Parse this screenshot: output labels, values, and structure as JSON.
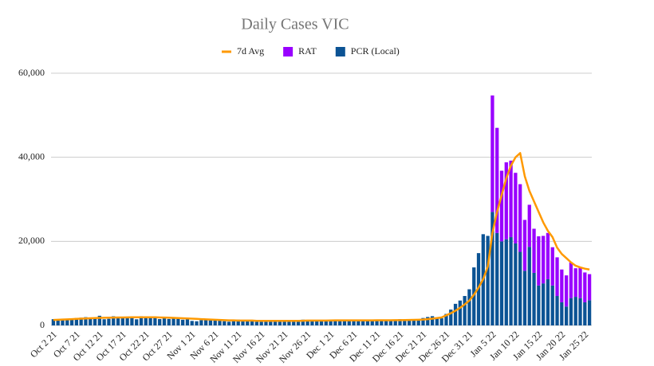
{
  "chart_data": {
    "type": "bar",
    "stacked": true,
    "title": "Daily Cases VIC",
    "categories": [
      "Oct 2 21",
      null,
      null,
      null,
      null,
      "Oct 7 21",
      null,
      null,
      null,
      null,
      "Oct 12 21",
      null,
      null,
      null,
      null,
      "Oct 17 21",
      null,
      null,
      null,
      null,
      "Oct 22 21",
      null,
      null,
      null,
      null,
      "Oct 27 21",
      null,
      null,
      null,
      null,
      "Nov 1 21",
      null,
      null,
      null,
      null,
      "Nov 6 21",
      null,
      null,
      null,
      null,
      "Nov 11 21",
      null,
      null,
      null,
      null,
      "Nov 16 21",
      null,
      null,
      null,
      null,
      "Nov 21 21",
      null,
      null,
      null,
      null,
      "Nov 26 21",
      null,
      null,
      null,
      null,
      "Dec 1 21",
      null,
      null,
      null,
      null,
      "Dec 6 21",
      null,
      null,
      null,
      null,
      "Dec 11 21",
      null,
      null,
      null,
      null,
      "Dec 16 21",
      null,
      null,
      null,
      null,
      "Dec 21 21",
      null,
      null,
      null,
      null,
      "Dec 26 21",
      null,
      null,
      null,
      null,
      "Dec 31 21",
      null,
      null,
      null,
      null,
      "Jan 5 22",
      null,
      null,
      null,
      null,
      "Jan 10 22",
      null,
      null,
      null,
      null,
      "Jan 15 22",
      null,
      null,
      null,
      null,
      "Jan 20 22",
      null,
      null,
      null,
      null,
      "Jan 25 22",
      null
    ],
    "series": [
      {
        "name": "7d Avg",
        "type": "line",
        "color": "#ff9900",
        "values": [
          1300,
          1350,
          1400,
          1450,
          1500,
          1550,
          1600,
          1650,
          1700,
          1750,
          1800,
          1820,
          1850,
          1880,
          1900,
          1900,
          1920,
          1950,
          1950,
          1950,
          1950,
          1950,
          1930,
          1900,
          1880,
          1850,
          1800,
          1750,
          1700,
          1650,
          1600,
          1550,
          1500,
          1450,
          1400,
          1350,
          1300,
          1250,
          1200,
          1200,
          1150,
          1150,
          1150,
          1150,
          1100,
          1100,
          1100,
          1100,
          1100,
          1100,
          1100,
          1100,
          1100,
          1100,
          1120,
          1150,
          1150,
          1150,
          1150,
          1150,
          1180,
          1200,
          1200,
          1200,
          1200,
          1200,
          1200,
          1200,
          1200,
          1200,
          1220,
          1220,
          1230,
          1240,
          1250,
          1260,
          1280,
          1300,
          1320,
          1350,
          1400,
          1500,
          1600,
          1750,
          1900,
          2400,
          2900,
          3500,
          4200,
          5000,
          5900,
          7300,
          9000,
          11000,
          14000,
          22000,
          27000,
          31000,
          35000,
          38000,
          40000,
          41000,
          35500,
          32000,
          29500,
          27000,
          24500,
          22500,
          21000,
          18500,
          17000,
          16000,
          15000,
          14200,
          13800,
          13500,
          13300
        ]
      },
      {
        "name": "RAT",
        "type": "bar",
        "color": "#9900ff",
        "values": [
          0,
          0,
          0,
          0,
          0,
          0,
          0,
          0,
          0,
          0,
          0,
          0,
          0,
          0,
          0,
          0,
          0,
          0,
          0,
          0,
          0,
          0,
          0,
          0,
          0,
          0,
          0,
          0,
          0,
          0,
          0,
          0,
          0,
          0,
          0,
          0,
          0,
          0,
          0,
          0,
          0,
          0,
          0,
          0,
          0,
          0,
          0,
          0,
          0,
          0,
          0,
          0,
          0,
          0,
          0,
          0,
          0,
          0,
          0,
          0,
          0,
          0,
          0,
          0,
          0,
          0,
          0,
          0,
          0,
          0,
          0,
          0,
          0,
          0,
          0,
          0,
          0,
          0,
          0,
          0,
          0,
          0,
          0,
          0,
          0,
          0,
          0,
          0,
          0,
          0,
          0,
          0,
          0,
          0,
          0,
          27700,
          25000,
          16800,
          18300,
          18200,
          16800,
          16100,
          12100,
          10000,
          10500,
          11700,
          11300,
          11000,
          9100,
          9200,
          7800,
          7400,
          8500,
          6800,
          7300,
          7100,
          6200
        ]
      },
      {
        "name": "PCR (Local)",
        "type": "bar",
        "color": "#0b5394",
        "values": [
          1488,
          1377,
          1612,
          1420,
          1638,
          1763,
          1838,
          1965,
          1890,
          1612,
          2297,
          1466,
          1571,
          2179,
          1993,
          1903,
          1838,
          1749,
          1461,
          2189,
          2009,
          1935,
          1750,
          1510,
          1903,
          1534,
          1923,
          1656,
          1355,
          1471,
          1069,
          989,
          1247,
          1343,
          1221,
          1313,
          1126,
          1006,
          885,
          1247,
          1362,
          1221,
          1052,
          1029,
          860,
          847,
          996,
          1007,
          1163,
          1072,
          1029,
          1026,
          1254,
          1179,
          1365,
          1100,
          1145,
          1190,
          1038,
          1200,
          1313,
          1188,
          1206,
          1335,
          1211,
          1124,
          1202,
          1230,
          1312,
          1161,
          1205,
          1290,
          1089,
          1244,
          1405,
          1500,
          1382,
          1245,
          1302,
          1503,
          1765,
          2005,
          2200,
          1900,
          1700,
          2738,
          3767,
          5137,
          5919,
          7000,
          8600,
          13800,
          17200,
          21700,
          21300,
          27000,
          22000,
          20000,
          20500,
          21000,
          19500,
          17500,
          13000,
          18700,
          12500,
          9500,
          10000,
          11000,
          9500,
          7000,
          5500,
          4500,
          6500,
          6800,
          6500,
          5500,
          6000
        ]
      }
    ],
    "ylim": [
      0,
      60000
    ],
    "yticks": [
      0,
      {
        "value": 20000,
        "label": "20,000"
      },
      {
        "value": 40000,
        "label": "40,000"
      },
      {
        "value": 60000,
        "label": "60,000"
      }
    ],
    "grid": true,
    "legend": "top"
  }
}
